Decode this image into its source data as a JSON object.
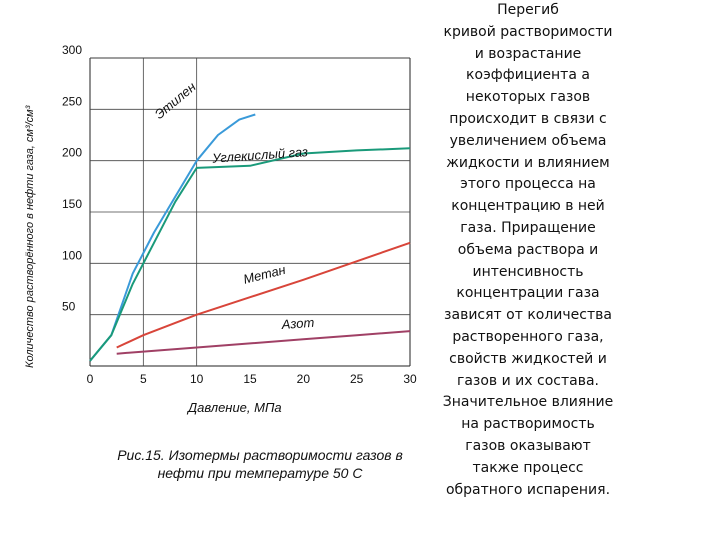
{
  "chart_data": {
    "type": "line",
    "xlabel": "Давление, МПа",
    "ylabel": "Количество растворённого в нефти газа, см³/см³",
    "xlim": [
      0,
      30
    ],
    "ylim": [
      0,
      300
    ],
    "x_ticks": [
      "0",
      "5",
      "10",
      "15",
      "20",
      "25",
      "30"
    ],
    "y_ticks": [
      "50",
      "100",
      "150",
      "200",
      "250",
      "300"
    ],
    "grid": "partial",
    "series": [
      {
        "name": "Этилен",
        "color": "#3a9ad9",
        "x": [
          0,
          2,
          4,
          6,
          8,
          10,
          12,
          14,
          15.5
        ],
        "y": [
          5,
          30,
          90,
          130,
          165,
          200,
          225,
          240,
          245
        ]
      },
      {
        "name": "Углекислый газ",
        "color": "#1a9a7a",
        "x": [
          0,
          2,
          4,
          6,
          8,
          10,
          15,
          20,
          25,
          30
        ],
        "y": [
          5,
          30,
          80,
          120,
          160,
          193,
          195,
          207,
          210,
          212
        ]
      },
      {
        "name": "Метан",
        "color": "#d8453a",
        "x": [
          2.5,
          5,
          10,
          15,
          20,
          25,
          30
        ],
        "y": [
          18,
          30,
          50,
          67,
          84,
          102,
          120
        ]
      },
      {
        "name": "Азот",
        "color": "#a04065",
        "x": [
          2.5,
          5,
          10,
          15,
          20,
          25,
          30
        ],
        "y": [
          12,
          14,
          18,
          22,
          26,
          30,
          34
        ]
      }
    ]
  },
  "caption": {
    "line1": "Рис.15. Изотермы растворимости газов в",
    "line2": "нефти при температуре 50 С"
  },
  "sidebar_lines": [
    "Перегиб",
    "кривой растворимости",
    "и возрастание",
    "коэффициента а",
    "некоторых газов",
    "происходит в связи с",
    "увеличением объема",
    "жидкости и влиянием",
    "этого процесса на",
    "концентрацию в ней",
    "газа. Приращение",
    "объема раствора и",
    "интенсивность",
    "концентрации газа",
    "зависят от количества",
    "растворенного газа,",
    "свойств жидкостей и",
    "газов и их состава.",
    "Значительное влияние",
    "на растворимость",
    "газов оказывают",
    "также процесс",
    "обратного испарения."
  ]
}
